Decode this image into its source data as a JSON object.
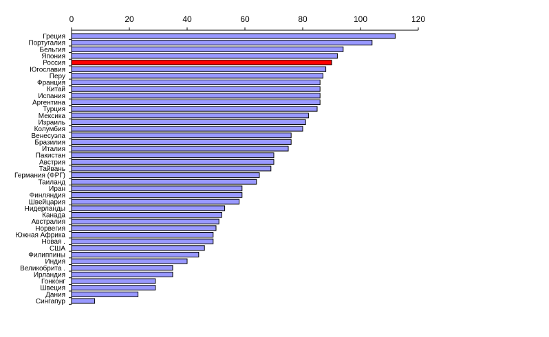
{
  "chart_data": {
    "type": "bar",
    "orientation": "horizontal",
    "title": "",
    "xlabel": "",
    "ylabel": "",
    "xlim": [
      0,
      120
    ],
    "x_ticks": [
      0,
      20,
      40,
      60,
      80,
      100,
      120
    ],
    "x_axis_position": "top",
    "grid": false,
    "legend": "none",
    "bar_color": "#9999FF",
    "highlight_color": "#FF0000",
    "highlight_category": "Россия",
    "categories": [
      "Греция",
      "Португалия",
      "Бельгия",
      "Япония",
      "Россия",
      "Югославия",
      "Перу",
      "Франция",
      "Китай",
      "Испания",
      "Аргентина",
      "Турция",
      "Мексика",
      "Израиль",
      "Колумбия",
      "Венесуэла",
      "Бразилия",
      "Италия",
      "Пакистан",
      "Австрия",
      "Тайвань",
      "Германия (ФРГ)",
      "Таиланд",
      "Иран",
      "Финляндия",
      "Швейцария",
      "Нидерланды",
      "Канада",
      "Австралия",
      "Норвегия",
      "Южная Африка",
      "Новая .",
      "США",
      "Филиппины",
      "Индия",
      "Великобрита .",
      "Ирландия",
      "Гонконг",
      "Швеция",
      "Дания",
      "Сингапур"
    ],
    "values": [
      112,
      104,
      94,
      92,
      90,
      88,
      87,
      86,
      86,
      86,
      86,
      85,
      82,
      81,
      80,
      76,
      76,
      75,
      70,
      70,
      69,
      65,
      64,
      59,
      59,
      58,
      53,
      52,
      51,
      50,
      49,
      49,
      46,
      44,
      40,
      35,
      35,
      29,
      29,
      23,
      8
    ]
  }
}
